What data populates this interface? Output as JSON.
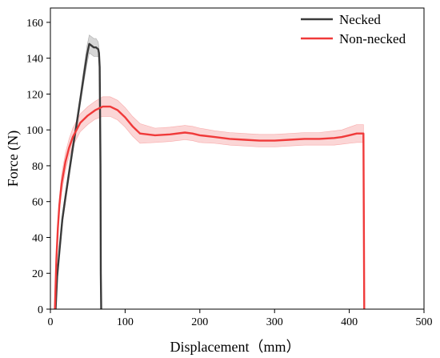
{
  "chart_data": {
    "type": "line",
    "title": "",
    "xlabel": "Displacement（mm）",
    "ylabel": "Force (N)",
    "xlim": [
      0,
      500
    ],
    "ylim": [
      0,
      168
    ],
    "xticks": [
      0,
      100,
      200,
      300,
      400,
      500
    ],
    "yticks": [
      0,
      20,
      40,
      60,
      80,
      100,
      120,
      140,
      160
    ],
    "grid": false,
    "legend_position": "top-right",
    "series": [
      {
        "name": "Necked",
        "color": "#3a3a3a",
        "band_color": "#b5b5b5",
        "x": [
          7,
          9,
          12,
          16,
          20,
          25,
          30,
          35,
          40,
          45,
          49,
          52,
          55,
          58,
          61,
          64,
          65,
          66,
          67,
          67.5,
          68
        ],
        "y": [
          0,
          18,
          32,
          50,
          62,
          76,
          90,
          103,
          117,
          131,
          142,
          148,
          147,
          146,
          146,
          145,
          143,
          135,
          80,
          20,
          0
        ],
        "band": [
          0.5,
          3,
          3,
          3,
          3,
          3,
          3,
          3,
          3,
          4,
          5,
          5,
          5,
          5,
          5,
          4,
          3,
          3,
          3,
          2,
          0.5
        ]
      },
      {
        "name": "Non-necked",
        "color": "#f03a3a",
        "band_color": "#f7b5b5",
        "x": [
          6,
          8,
          10,
          12,
          15,
          20,
          25,
          30,
          35,
          40,
          50,
          60,
          70,
          80,
          90,
          100,
          110,
          120,
          140,
          160,
          180,
          190,
          200,
          220,
          240,
          260,
          280,
          300,
          320,
          340,
          360,
          380,
          390,
          400,
          410,
          419,
          419.5,
          420
        ],
        "y": [
          0,
          28,
          45,
          58,
          70,
          82,
          90,
          96,
          100,
          104,
          108,
          111,
          113,
          113,
          111,
          107,
          102,
          98,
          97,
          97.5,
          98.5,
          98,
          97,
          96,
          95,
          94.5,
          94,
          94,
          94.5,
          95,
          95,
          95.5,
          96,
          97,
          98,
          98,
          50,
          0
        ],
        "band": [
          0.5,
          3,
          4,
          4,
          5,
          5,
          5,
          5,
          5,
          5,
          5,
          5,
          5.5,
          5.5,
          5.5,
          5.5,
          5.5,
          5.5,
          4,
          4,
          4,
          4,
          4,
          3.5,
          3.5,
          3.5,
          3.5,
          3.5,
          3.5,
          3.5,
          3.5,
          4,
          4,
          4.5,
          5,
          5,
          3,
          0.5
        ]
      }
    ]
  }
}
